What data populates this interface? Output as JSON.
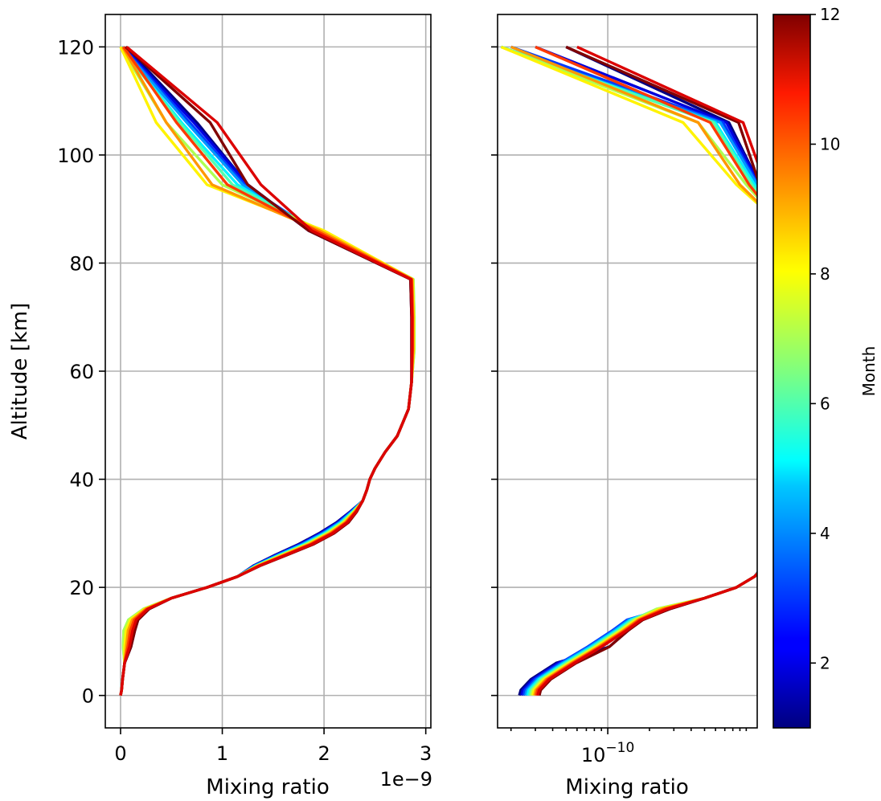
{
  "chart_data": [
    {
      "type": "line",
      "panel": "left",
      "xlabel": "Mixing ratio",
      "ylabel": "Altitude [km]",
      "x_offset_label": "1e−9",
      "xlim": [
        -0.15,
        3.05
      ],
      "ylim": [
        -6,
        126
      ],
      "x_ticks": [
        0,
        1,
        2,
        3
      ],
      "x_tick_labels": [
        "0",
        "1",
        "2",
        "3"
      ],
      "y_ticks": [
        0,
        20,
        40,
        60,
        80,
        100,
        120
      ],
      "y_tick_labels": [
        "0",
        "20",
        "40",
        "60",
        "80",
        "100",
        "120"
      ],
      "x_unit_scale": "1e-9",
      "grid": true,
      "altitude_km": [
        0,
        1,
        3,
        6,
        9,
        12,
        14,
        16,
        18,
        20,
        22,
        24,
        26,
        28,
        30,
        32,
        34,
        36,
        38,
        40,
        42,
        45,
        48,
        53,
        58,
        64,
        70,
        77,
        86,
        94.5,
        106,
        120
      ],
      "base_profile": [
        0,
        0.01,
        0.02,
        0.04,
        0.06,
        0.08,
        0.12,
        0.25,
        0.5,
        0.85,
        1.15,
        1.35,
        1.6,
        1.85,
        2.05,
        2.2,
        2.3,
        2.38,
        2.42,
        2.45,
        2.5,
        2.6,
        2.72,
        2.83,
        2.86,
        2.86,
        2.86,
        2.85,
        2.0,
        1.2,
        0.85,
        0.03
      ],
      "series": [
        {
          "month": 1,
          "upper_x": [
            1.85,
            1.25,
            0.75,
            0.05
          ]
        },
        {
          "month": 2,
          "upper_x": [
            1.85,
            1.25,
            0.72,
            0.03
          ]
        },
        {
          "month": 3,
          "upper_x": [
            1.9,
            1.22,
            0.68,
            0.02
          ]
        },
        {
          "month": 4,
          "upper_x": [
            1.9,
            1.2,
            0.65,
            0.01
          ]
        },
        {
          "month": 5,
          "upper_x": [
            1.92,
            1.15,
            0.6,
            0.0
          ]
        },
        {
          "month": 6,
          "upper_x": [
            1.95,
            1.1,
            0.58,
            0.0
          ]
        },
        {
          "month": 7,
          "upper_x": [
            1.98,
            1.0,
            0.45,
            0.0
          ]
        },
        {
          "month": 8,
          "upper_x": [
            2.0,
            0.85,
            0.35,
            0.0
          ]
        },
        {
          "month": 9,
          "upper_x": [
            1.96,
            0.9,
            0.45,
            0.02
          ]
        },
        {
          "month": 10,
          "upper_x": [
            1.92,
            1.05,
            0.55,
            0.03
          ]
        },
        {
          "month": 11,
          "upper_x": [
            1.88,
            1.38,
            0.95,
            0.06
          ]
        },
        {
          "month": 12,
          "upper_x": [
            1.85,
            1.25,
            0.88,
            0.05
          ]
        }
      ]
    },
    {
      "type": "line",
      "panel": "right",
      "xlabel": "Mixing ratio",
      "x_scale": "log",
      "xlim": [
        1.6e-11,
        1.2e-09
      ],
      "x_ticks": [
        1e-10
      ],
      "x_tick_labels_base": "10",
      "x_tick_labels_exp": "−10",
      "ylim": [
        -6,
        126
      ],
      "grid": true,
      "series_description_only": false
    }
  ],
  "colorbar": {
    "label": "Month",
    "range": [
      1,
      12
    ],
    "ticks": [
      2,
      4,
      6,
      8,
      10,
      12
    ],
    "tick_labels": [
      "2",
      "4",
      "6",
      "8",
      "10",
      "12"
    ],
    "colormap": "jet"
  }
}
